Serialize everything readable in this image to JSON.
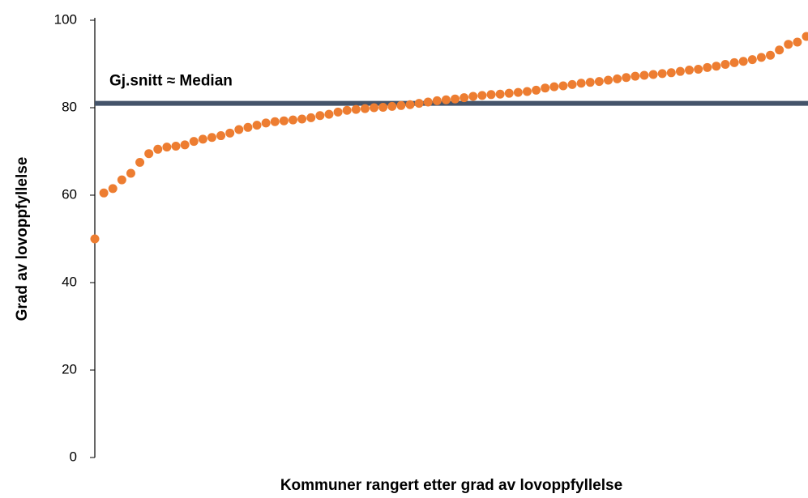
{
  "chart_data": {
    "type": "scatter",
    "xlabel": "Kommuner rangert etter grad av lovoppfyllelse",
    "ylabel": "Grad av lovoppfyllelse",
    "annotation": {
      "text": "Gj.snitt ≈ Median",
      "value": 81,
      "color": "#44546a"
    },
    "color": "#ed7d31",
    "x": [
      1,
      2,
      3,
      4,
      5,
      6,
      7,
      8,
      9,
      10,
      11,
      12,
      13,
      14,
      15,
      16,
      17,
      18,
      19,
      20,
      21,
      22,
      23,
      24,
      25,
      26,
      27,
      28,
      29,
      30,
      31,
      32,
      33,
      34,
      35,
      36,
      37,
      38,
      39,
      40,
      41,
      42,
      43,
      44,
      45,
      46,
      47,
      48,
      49,
      50,
      51,
      52,
      53,
      54,
      55,
      56,
      57,
      58,
      59,
      60,
      61,
      62,
      63,
      64,
      65,
      66,
      67,
      68,
      69,
      70,
      71,
      72,
      73,
      74,
      75,
      76,
      77,
      78,
      79,
      80
    ],
    "values": [
      50,
      60.5,
      61.5,
      63.5,
      65,
      67.5,
      69.5,
      70.5,
      71,
      71.2,
      71.5,
      72.3,
      72.8,
      73.2,
      73.6,
      74.2,
      75,
      75.5,
      76,
      76.5,
      76.8,
      77,
      77.2,
      77.4,
      77.7,
      78.2,
      78.5,
      79,
      79.4,
      79.6,
      79.8,
      80,
      80.1,
      80.3,
      80.5,
      80.7,
      81,
      81.3,
      81.6,
      81.8,
      82,
      82.3,
      82.6,
      82.8,
      83,
      83.1,
      83.3,
      83.5,
      83.7,
      84,
      84.5,
      84.8,
      85,
      85.3,
      85.6,
      85.8,
      86,
      86.3,
      86.6,
      86.9,
      87.2,
      87.4,
      87.6,
      87.8,
      88,
      88.3,
      88.6,
      88.8,
      89.2,
      89.5,
      89.9,
      90.3,
      90.6,
      91,
      91.5,
      92,
      93.2,
      94.5,
      95,
      96.3
    ],
    "xlim": [
      1,
      80
    ],
    "ylim": [
      0,
      100
    ],
    "yticks": [
      0,
      20,
      40,
      60,
      80,
      100
    ]
  }
}
